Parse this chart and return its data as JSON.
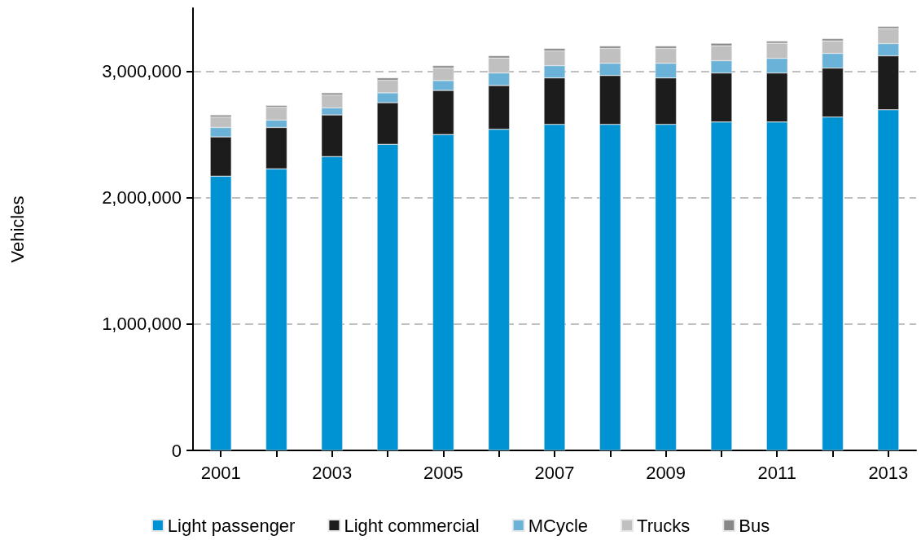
{
  "chart_data": {
    "type": "bar",
    "stacked": true,
    "ylabel": "Vehicles",
    "categories": [
      "2001",
      null,
      "2003",
      null,
      "2005",
      null,
      "2007",
      null,
      "2009",
      null,
      "2011",
      null,
      "2013"
    ],
    "series": [
      {
        "name": "Light passenger",
        "color": "#0093d3",
        "values": [
          2170000,
          2228000,
          2325000,
          2422000,
          2500000,
          2541000,
          2580000,
          2580000,
          2580000,
          2599000,
          2599000,
          2638000,
          2696000
        ]
      },
      {
        "name": "Light commercial",
        "color": "#1c1c1c",
        "values": [
          311000,
          328000,
          330000,
          330000,
          349000,
          347000,
          368000,
          387000,
          368000,
          388000,
          388000,
          388000,
          427000
        ]
      },
      {
        "name": "MCycle",
        "color": "#6ab2d8",
        "values": [
          75000,
          58000,
          56000,
          78000,
          78000,
          99000,
          97000,
          97000,
          116000,
          97000,
          116000,
          116000,
          97000
        ]
      },
      {
        "name": "Trucks",
        "color": "#c0c0c0",
        "values": [
          82000,
          101000,
          101000,
          99000,
          99000,
          118000,
          116000,
          117000,
          117000,
          118000,
          119000,
          99000,
          118000
        ]
      },
      {
        "name": "Bus",
        "color": "#888888",
        "values": [
          17000,
          15000,
          18000,
          19000,
          19000,
          18000,
          20000,
          19000,
          19000,
          20000,
          17000,
          17000,
          17000
        ]
      }
    ],
    "ylim": [
      0,
      3500000
    ],
    "yticks": [
      {
        "value": 0,
        "label": "0"
      },
      {
        "value": 1000000,
        "label": "1,000,000"
      },
      {
        "value": 2000000,
        "label": "2,000,000"
      },
      {
        "value": 3000000,
        "label": "3,000,000"
      }
    ],
    "grid": "y",
    "legend": "bottom"
  }
}
